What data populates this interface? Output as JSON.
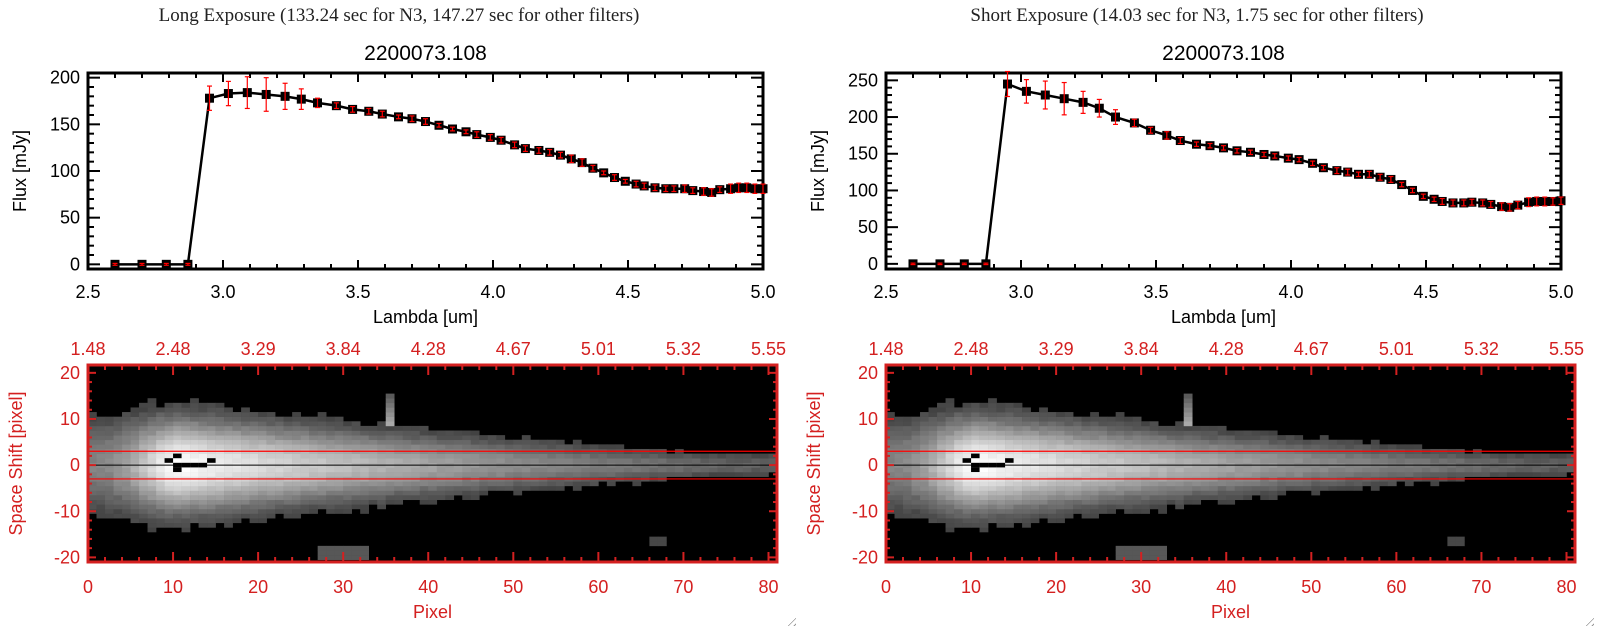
{
  "panels": [
    {
      "window_title": "Long Exposure (133.24 sec for N3, 147.27 sec for other filters)",
      "chart_data": [
        {
          "type": "line",
          "title": "2200073.108",
          "xlabel": "Lambda [um]",
          "ylabel": "Flux [mJy]",
          "xlim": [
            2.5,
            5.0
          ],
          "ylim": [
            -5,
            205
          ],
          "xticks": [
            "2.5",
            "3.0",
            "3.5",
            "4.0",
            "4.5",
            "5.0"
          ],
          "yticks": [
            "0",
            "50",
            "100",
            "150",
            "200"
          ],
          "ytick_values": [
            0,
            50,
            100,
            150,
            200
          ],
          "line_color": "#000000",
          "errorbar_color": "#ff0000",
          "x": [
            2.6,
            2.7,
            2.79,
            2.87,
            2.95,
            3.02,
            3.09,
            3.16,
            3.23,
            3.29,
            3.35,
            3.42,
            3.48,
            3.54,
            3.59,
            3.65,
            3.7,
            3.75,
            3.8,
            3.85,
            3.9,
            3.94,
            3.99,
            4.03,
            4.08,
            4.12,
            4.17,
            4.21,
            4.25,
            4.29,
            4.33,
            4.37,
            4.41,
            4.45,
            4.49,
            4.53,
            4.56,
            4.6,
            4.64,
            4.67,
            4.71,
            4.74,
            4.78,
            4.81,
            4.84,
            4.88,
            4.91,
            4.94,
            4.97,
            5.0
          ],
          "y": [
            0,
            0,
            0,
            0,
            178,
            183,
            184,
            182,
            180,
            177,
            173,
            170,
            166,
            164,
            161,
            158,
            156,
            153,
            149,
            145,
            142,
            139,
            136,
            133,
            128,
            124,
            122,
            120,
            117,
            113,
            109,
            103,
            98,
            93,
            89,
            86,
            84,
            82,
            81,
            81,
            81,
            79,
            78,
            77,
            80,
            81,
            82,
            82,
            81,
            81
          ],
          "yerr": [
            0,
            0,
            0,
            0,
            13,
            13,
            17,
            18,
            14,
            11,
            5,
            3,
            3,
            3,
            3,
            2,
            3,
            3,
            2,
            2,
            2,
            3,
            3,
            3,
            3,
            3,
            3,
            3,
            3,
            4,
            4,
            3,
            2,
            3,
            2,
            3,
            3,
            3,
            3,
            3,
            4,
            3,
            4,
            4,
            3,
            5,
            5,
            5,
            5,
            5
          ]
        },
        {
          "type": "heatmap",
          "xlabel": "Pixel",
          "ylabel": "Space Shift [pixel]",
          "xlim": [
            0,
            81
          ],
          "ylim": [
            -21,
            21.7
          ],
          "xticks": [
            "0",
            "10",
            "20",
            "30",
            "40",
            "50",
            "60",
            "70",
            "80"
          ],
          "yticks": [
            "-20",
            "-10",
            "0",
            "10",
            "20"
          ],
          "ytick_values": [
            -20,
            -10,
            0,
            10,
            20
          ],
          "top_xticks": [
            "1.48",
            "2.48",
            "3.29",
            "3.84",
            "4.28",
            "4.67",
            "5.01",
            "5.32",
            "5.55"
          ],
          "aperture_lines": [
            -3,
            3
          ],
          "center_line": 0,
          "axis_color": "#d42020",
          "aperture_color": "#ff0000"
        }
      ]
    },
    {
      "window_title": "Short Exposure (14.03 sec for N3, 1.75 sec for other filters)",
      "chart_data": [
        {
          "type": "line",
          "title": "2200073.108",
          "xlabel": "Lambda [um]",
          "ylabel": "Flux [mJy]",
          "xlim": [
            2.5,
            5.0
          ],
          "ylim": [
            -7,
            260
          ],
          "xticks": [
            "2.5",
            "3.0",
            "3.5",
            "4.0",
            "4.5",
            "5.0"
          ],
          "yticks": [
            "0",
            "50",
            "100",
            "150",
            "200",
            "250"
          ],
          "ytick_values": [
            0,
            50,
            100,
            150,
            200,
            250
          ],
          "line_color": "#000000",
          "errorbar_color": "#ff0000",
          "x": [
            2.6,
            2.7,
            2.79,
            2.87,
            2.95,
            3.02,
            3.09,
            3.16,
            3.23,
            3.29,
            3.35,
            3.42,
            3.48,
            3.54,
            3.59,
            3.65,
            3.7,
            3.75,
            3.8,
            3.85,
            3.9,
            3.94,
            3.99,
            4.03,
            4.08,
            4.12,
            4.17,
            4.21,
            4.25,
            4.29,
            4.33,
            4.37,
            4.41,
            4.45,
            4.49,
            4.53,
            4.56,
            4.6,
            4.64,
            4.67,
            4.71,
            4.74,
            4.78,
            4.81,
            4.84,
            4.88,
            4.91,
            4.94,
            4.97,
            5.0
          ],
          "y": [
            0,
            0,
            0,
            0,
            245,
            235,
            230,
            225,
            220,
            212,
            200,
            192,
            182,
            175,
            168,
            163,
            161,
            158,
            154,
            152,
            149,
            147,
            144,
            142,
            137,
            131,
            127,
            125,
            122,
            122,
            118,
            115,
            108,
            100,
            92,
            88,
            85,
            83,
            83,
            84,
            83,
            81,
            78,
            77,
            80,
            84,
            85,
            85,
            85,
            86
          ],
          "yerr": [
            0,
            0,
            0,
            0,
            17,
            16,
            19,
            22,
            15,
            12,
            10,
            5,
            4,
            5,
            4,
            3,
            3,
            3,
            3,
            3,
            3,
            3,
            3,
            3,
            3,
            3,
            4,
            4,
            3,
            4,
            4,
            4,
            3,
            3,
            3,
            3,
            4,
            4,
            4,
            4,
            4,
            4,
            5,
            5,
            5,
            6,
            6,
            6,
            5,
            5
          ]
        },
        {
          "type": "heatmap",
          "xlabel": "Pixel",
          "ylabel": "Space Shift [pixel]",
          "xlim": [
            0,
            81
          ],
          "ylim": [
            -21,
            21.7
          ],
          "xticks": [
            "0",
            "10",
            "20",
            "30",
            "40",
            "50",
            "60",
            "70",
            "80"
          ],
          "yticks": [
            "-20",
            "-10",
            "0",
            "10",
            "20"
          ],
          "ytick_values": [
            -20,
            -10,
            0,
            10,
            20
          ],
          "top_xticks": [
            "1.48",
            "2.48",
            "3.29",
            "3.84",
            "4.28",
            "4.67",
            "5.01",
            "5.32",
            "5.55"
          ],
          "aperture_lines": [
            -3,
            3
          ],
          "center_line": 0,
          "axis_color": "#d42020",
          "aperture_color": "#ff0000"
        }
      ]
    }
  ]
}
